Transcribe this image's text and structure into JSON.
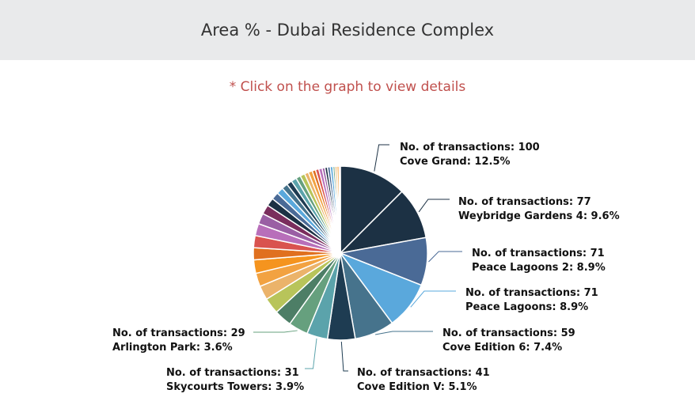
{
  "header": {
    "title": "Area % - Dubai Residence Complex"
  },
  "hint": "* Click on the graph to view details",
  "chart_data": {
    "type": "pie",
    "title": "Area % - Dubai Residence Complex",
    "label_prefix": "No. of transactions",
    "slices": [
      {
        "name": "Cove Grand",
        "value": 100,
        "percent": "12.5%",
        "color": "#1c3144"
      },
      {
        "name": "Weybridge Gardens 4",
        "value": 77,
        "percent": "9.6%",
        "color": "#1c3144"
      },
      {
        "name": "Peace Lagoons 2",
        "value": 71,
        "percent": "8.9%",
        "color": "#4a6a96"
      },
      {
        "name": "Peace Lagoons",
        "value": 71,
        "percent": "8.9%",
        "color": "#5aa8dc"
      },
      {
        "name": "Cove Edition 6",
        "value": 59,
        "percent": "7.4%",
        "color": "#46738c"
      },
      {
        "name": "Cove Edition V",
        "value": 41,
        "percent": "5.1%",
        "color": "#1e3c52"
      },
      {
        "name": "Skycourts Towers",
        "value": 31,
        "percent": "3.9%",
        "color": "#5ba3ab"
      },
      {
        "name": "Arlington Park",
        "value": 29,
        "percent": "3.6%",
        "color": "#66a07e"
      }
    ],
    "other_values": [
      26,
      24,
      21,
      20,
      20,
      18,
      18,
      18,
      16,
      14,
      12,
      11,
      10,
      9,
      8,
      8,
      7,
      7,
      6,
      6,
      5,
      5,
      5,
      4,
      4,
      4,
      4,
      3,
      3,
      3,
      2
    ],
    "other_colors": [
      "#4d7e66",
      "#b8c45a",
      "#ebb36a",
      "#f2a241",
      "#f5941e",
      "#e0701f",
      "#d9534f",
      "#b86fba",
      "#9a5fa4",
      "#7a2d5c",
      "#1c3144",
      "#4a6a96",
      "#5aa8dc",
      "#46738c",
      "#1e3c52",
      "#5ba3ab",
      "#66a07e",
      "#b8c45a",
      "#ebb36a",
      "#f2a241",
      "#e0701f",
      "#d9534f",
      "#b86fba",
      "#9a5fa4",
      "#1c3144",
      "#4a6a96",
      "#5aa8dc",
      "#66a07e",
      "#ebb36a",
      "#f5941e",
      "#b86fba"
    ]
  }
}
